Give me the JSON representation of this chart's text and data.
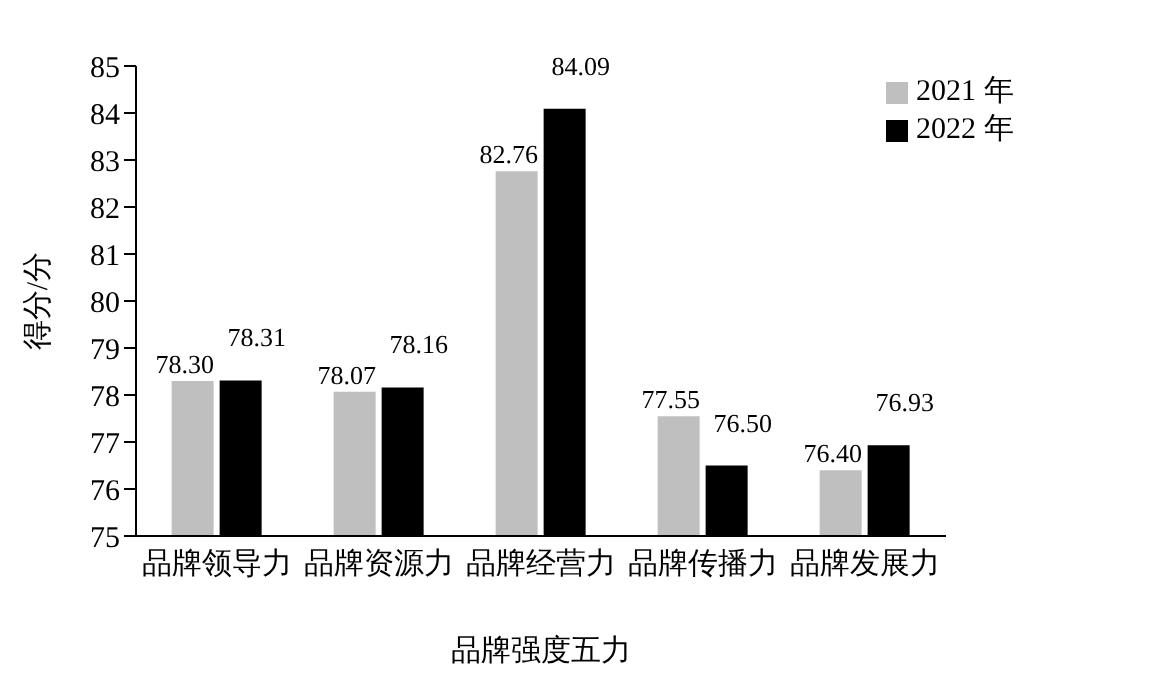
{
  "chart_data": {
    "type": "bar",
    "xlabel": "品牌强度五力",
    "ylabel": "得分/分",
    "categories": [
      "品牌领导力",
      "品牌资源力",
      "品牌经营力",
      "品牌传播力",
      "品牌发展力"
    ],
    "series": [
      {
        "name": "2021 年",
        "color": "#bfbfbf",
        "values": [
          78.3,
          78.07,
          82.76,
          77.55,
          76.4
        ],
        "value_labels": [
          "78.30",
          "78.07",
          "82.76",
          "77.55",
          "76.40"
        ]
      },
      {
        "name": "2022 年",
        "color": "#000000",
        "values": [
          78.31,
          78.16,
          84.09,
          76.5,
          76.93
        ],
        "value_labels": [
          "78.31",
          "78.16",
          "84.09",
          "76.50",
          "76.93"
        ]
      }
    ],
    "ylim": [
      75,
      85
    ],
    "yticks": [
      75,
      76,
      77,
      78,
      79,
      80,
      81,
      82,
      83,
      84,
      85
    ],
    "grid": false,
    "legend": "top right"
  }
}
